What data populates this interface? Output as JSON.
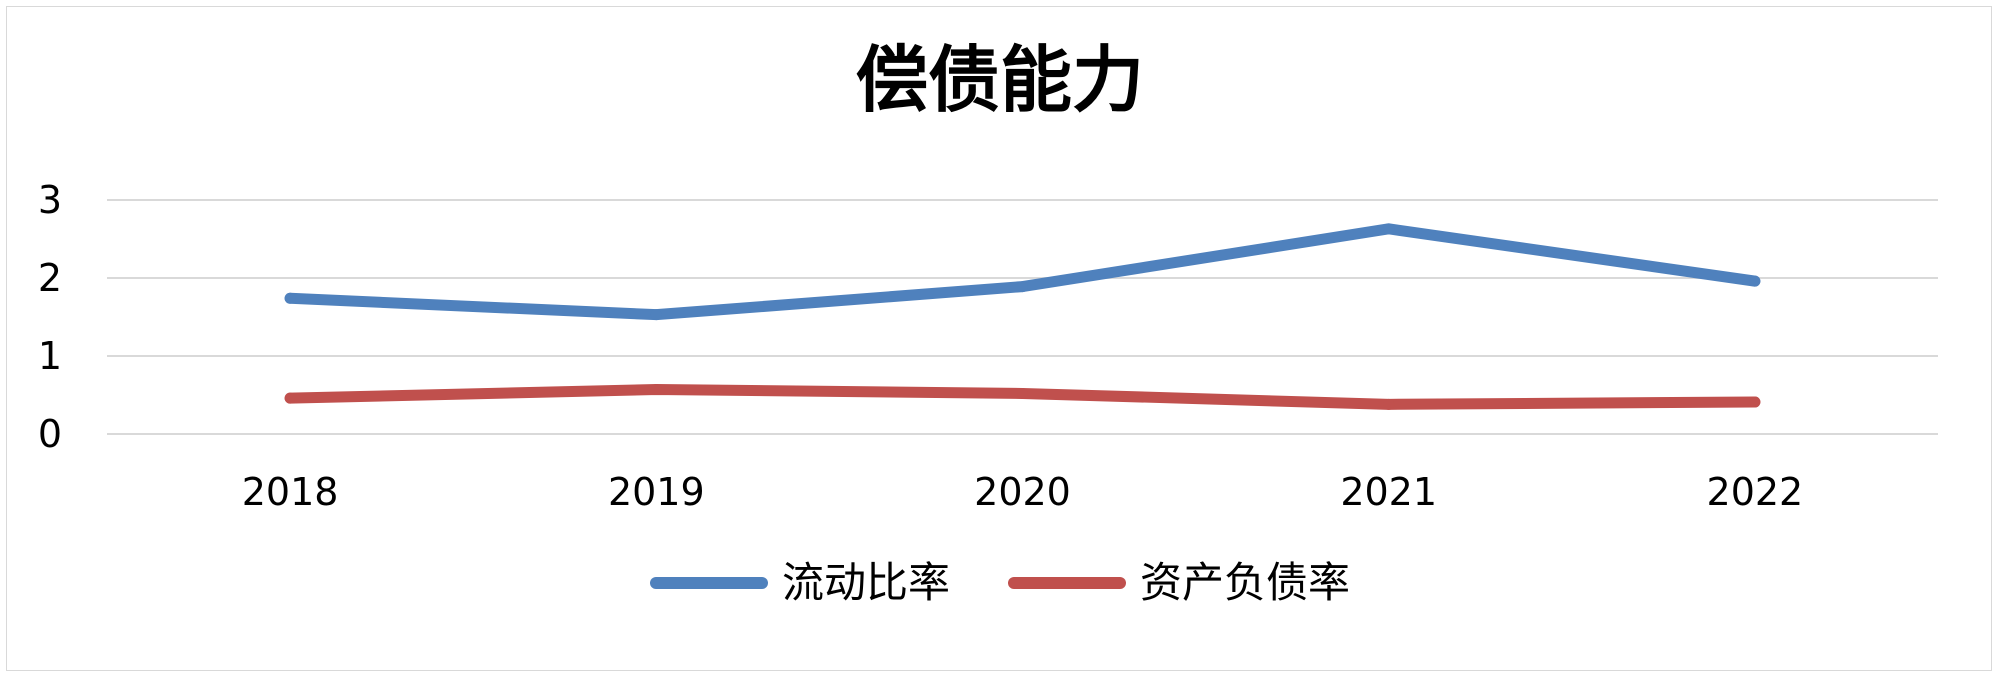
{
  "chart_data": {
    "type": "line",
    "title": "偿债能力",
    "xlabel": "",
    "ylabel": "",
    "categories": [
      "2018",
      "2019",
      "2020",
      "2021",
      "2022"
    ],
    "ylim": [
      0,
      3
    ],
    "yticks": [
      "0",
      "1",
      "2",
      "3"
    ],
    "grid": true,
    "legend_position": "bottom",
    "series": [
      {
        "name": "流动比率",
        "color": "#4f81bd",
        "values": [
          1.74,
          1.53,
          1.89,
          2.63,
          1.96
        ]
      },
      {
        "name": "资产负债率",
        "color": "#c0504d",
        "values": [
          0.46,
          0.57,
          0.52,
          0.38,
          0.41
        ]
      }
    ]
  }
}
